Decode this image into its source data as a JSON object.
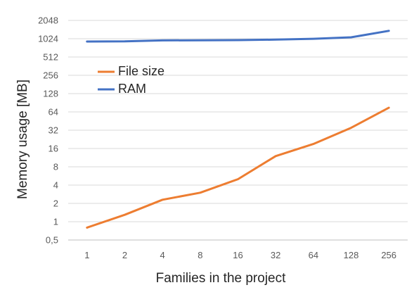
{
  "chart_data": {
    "type": "line",
    "title": "",
    "xlabel": "Families in the project",
    "ylabel": "Memory usage [MB]",
    "x": [
      "1",
      "2",
      "4",
      "8",
      "16",
      "32",
      "64",
      "128",
      "256"
    ],
    "y_scale": "log2",
    "y_ticks": [
      "0,5",
      "1",
      "2",
      "4",
      "8",
      "16",
      "32",
      "64",
      "128",
      "256",
      "512",
      "1024",
      "2048"
    ],
    "y_tick_values": [
      0.5,
      1,
      2,
      4,
      8,
      16,
      32,
      64,
      128,
      256,
      512,
      1024,
      2048
    ],
    "ylim": [
      0.5,
      2048
    ],
    "grid": true,
    "legend_position": "upper-left",
    "series": [
      {
        "name": "File size",
        "color": "#ED7D31",
        "values": [
          0.8,
          1.3,
          2.3,
          3.0,
          5.0,
          12,
          19,
          35,
          75
        ]
      },
      {
        "name": "RAM",
        "color": "#4472C4",
        "values": [
          920,
          925,
          960,
          965,
          970,
          990,
          1020,
          1080,
          1380
        ]
      }
    ]
  }
}
